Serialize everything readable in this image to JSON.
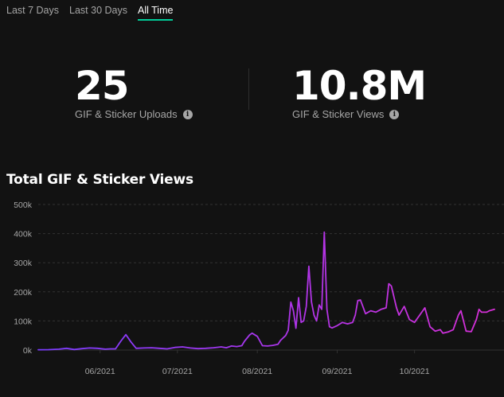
{
  "tabs": [
    {
      "label": "Last 7 Days",
      "active": false
    },
    {
      "label": "Last 30 Days",
      "active": false
    },
    {
      "label": "All Time",
      "active": true
    }
  ],
  "stats": [
    {
      "value": "25",
      "label": "GIF & Sticker Uploads",
      "icon": "info-icon"
    },
    {
      "value": "10.8M",
      "label": "GIF & Sticker Views",
      "icon": "info-icon"
    }
  ],
  "colors": {
    "background": "#121212",
    "accent_underline": "#00cc99",
    "line_start": "#7a3cff",
    "line_end": "#d62fd6",
    "grid": "#333333",
    "muted_text": "#a6a6a6"
  },
  "chart_data": {
    "type": "line",
    "title": "Total GIF & Sticker Views",
    "xlabel": "",
    "ylabel": "",
    "ylim": [
      0,
      500000
    ],
    "yticks": [
      0,
      100000,
      200000,
      300000,
      400000,
      500000
    ],
    "ytick_labels": [
      "0k",
      "100k",
      "200k",
      "300k",
      "400k",
      "500k"
    ],
    "xlim": [
      "2021-05-08",
      "2021-11-01"
    ],
    "xticks": [
      "2021-06-01",
      "2021-07-01",
      "2021-08-01",
      "2021-09-01",
      "2021-10-01"
    ],
    "xtick_labels": [
      "06/2021",
      "07/2021",
      "08/2021",
      "09/2021",
      "10/2021"
    ],
    "grid": true,
    "legend": "none",
    "series": [
      {
        "points": [
          [
            "2021-05-08",
            1000
          ],
          [
            "2021-05-12",
            1500
          ],
          [
            "2021-05-16",
            3000
          ],
          [
            "2021-05-19",
            6000
          ],
          [
            "2021-05-22",
            2000
          ],
          [
            "2021-05-25",
            5000
          ],
          [
            "2021-05-28",
            7000
          ],
          [
            "2021-05-31",
            6000
          ],
          [
            "2021-06-03",
            3000
          ],
          [
            "2021-06-05",
            4000
          ],
          [
            "2021-06-07",
            4000
          ],
          [
            "2021-06-09",
            30000
          ],
          [
            "2021-06-11",
            53000
          ],
          [
            "2021-06-13",
            28000
          ],
          [
            "2021-06-15",
            6000
          ],
          [
            "2021-06-18",
            7000
          ],
          [
            "2021-06-21",
            8000
          ],
          [
            "2021-06-24",
            6000
          ],
          [
            "2021-06-27",
            4000
          ],
          [
            "2021-06-30",
            9000
          ],
          [
            "2021-07-03",
            11000
          ],
          [
            "2021-07-06",
            7000
          ],
          [
            "2021-07-09",
            5000
          ],
          [
            "2021-07-12",
            6000
          ],
          [
            "2021-07-15",
            8000
          ],
          [
            "2021-07-18",
            11000
          ],
          [
            "2021-07-20",
            8000
          ],
          [
            "2021-07-22",
            14000
          ],
          [
            "2021-07-24",
            12000
          ],
          [
            "2021-07-26",
            15000
          ],
          [
            "2021-07-27",
            30000
          ],
          [
            "2021-07-29",
            52000
          ],
          [
            "2021-07-30",
            58000
          ],
          [
            "2021-08-01",
            47000
          ],
          [
            "2021-08-03",
            15000
          ],
          [
            "2021-08-05",
            14000
          ],
          [
            "2021-08-07",
            16000
          ],
          [
            "2021-08-09",
            20000
          ],
          [
            "2021-08-10",
            33000
          ],
          [
            "2021-08-12",
            50000
          ],
          [
            "2021-08-13",
            68000
          ],
          [
            "2021-08-14",
            165000
          ],
          [
            "2021-08-15",
            135000
          ],
          [
            "2021-08-16",
            75000
          ],
          [
            "2021-08-17",
            180000
          ],
          [
            "2021-08-18",
            95000
          ],
          [
            "2021-08-19",
            100000
          ],
          [
            "2021-08-20",
            150000
          ],
          [
            "2021-08-21",
            288000
          ],
          [
            "2021-08-22",
            165000
          ],
          [
            "2021-08-23",
            120000
          ],
          [
            "2021-08-24",
            100000
          ],
          [
            "2021-08-25",
            155000
          ],
          [
            "2021-08-26",
            140000
          ],
          [
            "2021-08-27",
            405000
          ],
          [
            "2021-08-28",
            140000
          ],
          [
            "2021-08-29",
            80000
          ],
          [
            "2021-08-30",
            76000
          ],
          [
            "2021-09-01",
            84000
          ],
          [
            "2021-09-03",
            95000
          ],
          [
            "2021-09-05",
            90000
          ],
          [
            "2021-09-07",
            95000
          ],
          [
            "2021-09-08",
            120000
          ],
          [
            "2021-09-09",
            170000
          ],
          [
            "2021-09-10",
            172000
          ],
          [
            "2021-09-12",
            125000
          ],
          [
            "2021-09-14",
            135000
          ],
          [
            "2021-09-16",
            130000
          ],
          [
            "2021-09-18",
            140000
          ],
          [
            "2021-09-20",
            145000
          ],
          [
            "2021-09-21",
            228000
          ],
          [
            "2021-09-22",
            220000
          ],
          [
            "2021-09-24",
            145000
          ],
          [
            "2021-09-25",
            120000
          ],
          [
            "2021-09-27",
            150000
          ],
          [
            "2021-09-29",
            105000
          ],
          [
            "2021-10-01",
            95000
          ],
          [
            "2021-10-03",
            120000
          ],
          [
            "2021-10-05",
            145000
          ],
          [
            "2021-10-07",
            80000
          ],
          [
            "2021-10-09",
            65000
          ],
          [
            "2021-10-11",
            70000
          ],
          [
            "2021-10-12",
            58000
          ],
          [
            "2021-10-14",
            62000
          ],
          [
            "2021-10-16",
            70000
          ],
          [
            "2021-10-18",
            120000
          ],
          [
            "2021-10-19",
            135000
          ],
          [
            "2021-10-21",
            65000
          ],
          [
            "2021-10-23",
            63000
          ],
          [
            "2021-10-25",
            105000
          ],
          [
            "2021-10-26",
            140000
          ],
          [
            "2021-10-27",
            130000
          ],
          [
            "2021-10-29",
            130000
          ],
          [
            "2021-10-30",
            135000
          ],
          [
            "2021-11-01",
            140000
          ]
        ]
      }
    ]
  }
}
